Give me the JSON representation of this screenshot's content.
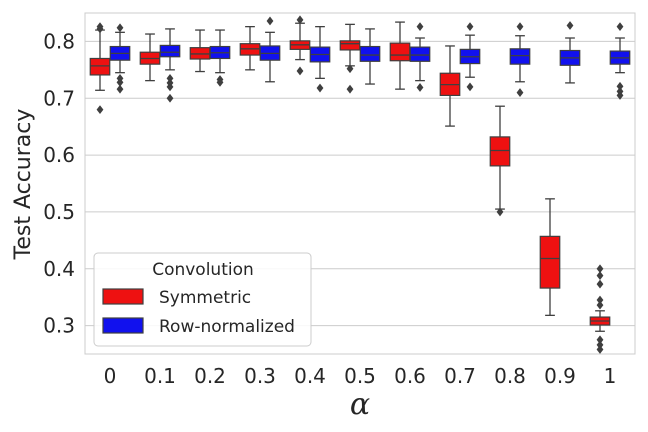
{
  "chart_data": {
    "type": "box",
    "xlabel": "α",
    "ylabel": "Test Accuracy",
    "ylim": [
      0.25,
      0.85
    ],
    "yticks": [
      "0.3",
      "0.4",
      "0.5",
      "0.6",
      "0.7",
      "0.8"
    ],
    "categories": [
      "0",
      "0.1",
      "0.2",
      "0.3",
      "0.4",
      "0.5",
      "0.6",
      "0.7",
      "0.8",
      "0.9",
      "1"
    ],
    "grid": true,
    "legend": {
      "title": "Convolution",
      "placement": "bottom-left",
      "entries": [
        {
          "name": "Symmetric",
          "color": "#ee1111"
        },
        {
          "name": "Row-normalized",
          "color": "#1111ee"
        }
      ]
    },
    "series": [
      {
        "name": "Symmetric",
        "color": "#ee1111",
        "boxes": [
          {
            "q1": 0.741,
            "median": 0.757,
            "q3": 0.77,
            "whisker_low": 0.714,
            "whisker_high": 0.82,
            "outliers": [
              0.826,
              0.822,
              0.68
            ]
          },
          {
            "q1": 0.76,
            "median": 0.77,
            "q3": 0.781,
            "whisker_low": 0.731,
            "whisker_high": 0.813,
            "outliers": []
          },
          {
            "q1": 0.769,
            "median": 0.778,
            "q3": 0.789,
            "whisker_low": 0.747,
            "whisker_high": 0.82,
            "outliers": []
          },
          {
            "q1": 0.776,
            "median": 0.787,
            "q3": 0.796,
            "whisker_low": 0.75,
            "whisker_high": 0.826,
            "outliers": []
          },
          {
            "q1": 0.786,
            "median": 0.794,
            "q3": 0.801,
            "whisker_low": 0.768,
            "whisker_high": 0.832,
            "outliers": [
              0.838,
              0.748
            ]
          },
          {
            "q1": 0.785,
            "median": 0.796,
            "q3": 0.801,
            "whisker_low": 0.757,
            "whisker_high": 0.83,
            "outliers": [
              0.752,
              0.716
            ]
          },
          {
            "q1": 0.766,
            "median": 0.776,
            "q3": 0.797,
            "whisker_low": 0.716,
            "whisker_high": 0.834,
            "outliers": []
          },
          {
            "q1": 0.705,
            "median": 0.724,
            "q3": 0.744,
            "whisker_low": 0.651,
            "whisker_high": 0.792,
            "outliers": []
          },
          {
            "q1": 0.581,
            "median": 0.608,
            "q3": 0.632,
            "whisker_low": 0.505,
            "whisker_high": 0.686,
            "outliers": [
              0.5
            ]
          },
          {
            "q1": 0.366,
            "median": 0.418,
            "q3": 0.457,
            "whisker_low": 0.318,
            "whisker_high": 0.523,
            "outliers": []
          },
          {
            "q1": 0.301,
            "median": 0.308,
            "q3": 0.315,
            "whisker_low": 0.29,
            "whisker_high": 0.326,
            "outliers": [
              0.4,
              0.388,
              0.373,
              0.345,
              0.336,
              0.275,
              0.266,
              0.258
            ]
          }
        ]
      },
      {
        "name": "Row-normalized",
        "color": "#1111ee",
        "boxes": [
          {
            "q1": 0.767,
            "median": 0.779,
            "q3": 0.791,
            "whisker_low": 0.745,
            "whisker_high": 0.816,
            "outliers": [
              0.824,
              0.735,
              0.728,
              0.716
            ]
          },
          {
            "q1": 0.773,
            "median": 0.781,
            "q3": 0.793,
            "whisker_low": 0.75,
            "whisker_high": 0.822,
            "outliers": [
              0.735,
              0.727,
              0.72,
              0.7
            ]
          },
          {
            "q1": 0.77,
            "median": 0.78,
            "q3": 0.791,
            "whisker_low": 0.745,
            "whisker_high": 0.82,
            "outliers": [
              0.733,
              0.728
            ]
          },
          {
            "q1": 0.767,
            "median": 0.779,
            "q3": 0.792,
            "whisker_low": 0.729,
            "whisker_high": 0.816,
            "outliers": [
              0.836
            ]
          },
          {
            "q1": 0.764,
            "median": 0.777,
            "q3": 0.79,
            "whisker_low": 0.735,
            "whisker_high": 0.826,
            "outliers": [
              0.718
            ]
          },
          {
            "q1": 0.765,
            "median": 0.776,
            "q3": 0.791,
            "whisker_low": 0.725,
            "whisker_high": 0.822,
            "outliers": []
          },
          {
            "q1": 0.765,
            "median": 0.776,
            "q3": 0.79,
            "whisker_low": 0.731,
            "whisker_high": 0.806,
            "outliers": [
              0.826,
              0.719
            ]
          },
          {
            "q1": 0.761,
            "median": 0.773,
            "q3": 0.786,
            "whisker_low": 0.737,
            "whisker_high": 0.811,
            "outliers": [
              0.826,
              0.72
            ]
          },
          {
            "q1": 0.76,
            "median": 0.775,
            "q3": 0.787,
            "whisker_low": 0.729,
            "whisker_high": 0.81,
            "outliers": [
              0.826,
              0.71
            ]
          },
          {
            "q1": 0.758,
            "median": 0.771,
            "q3": 0.784,
            "whisker_low": 0.727,
            "whisker_high": 0.806,
            "outliers": [
              0.828
            ]
          },
          {
            "q1": 0.76,
            "median": 0.771,
            "q3": 0.783,
            "whisker_low": 0.745,
            "whisker_high": 0.806,
            "outliers": [
              0.826,
              0.721,
              0.712,
              0.705
            ]
          }
        ]
      }
    ]
  }
}
